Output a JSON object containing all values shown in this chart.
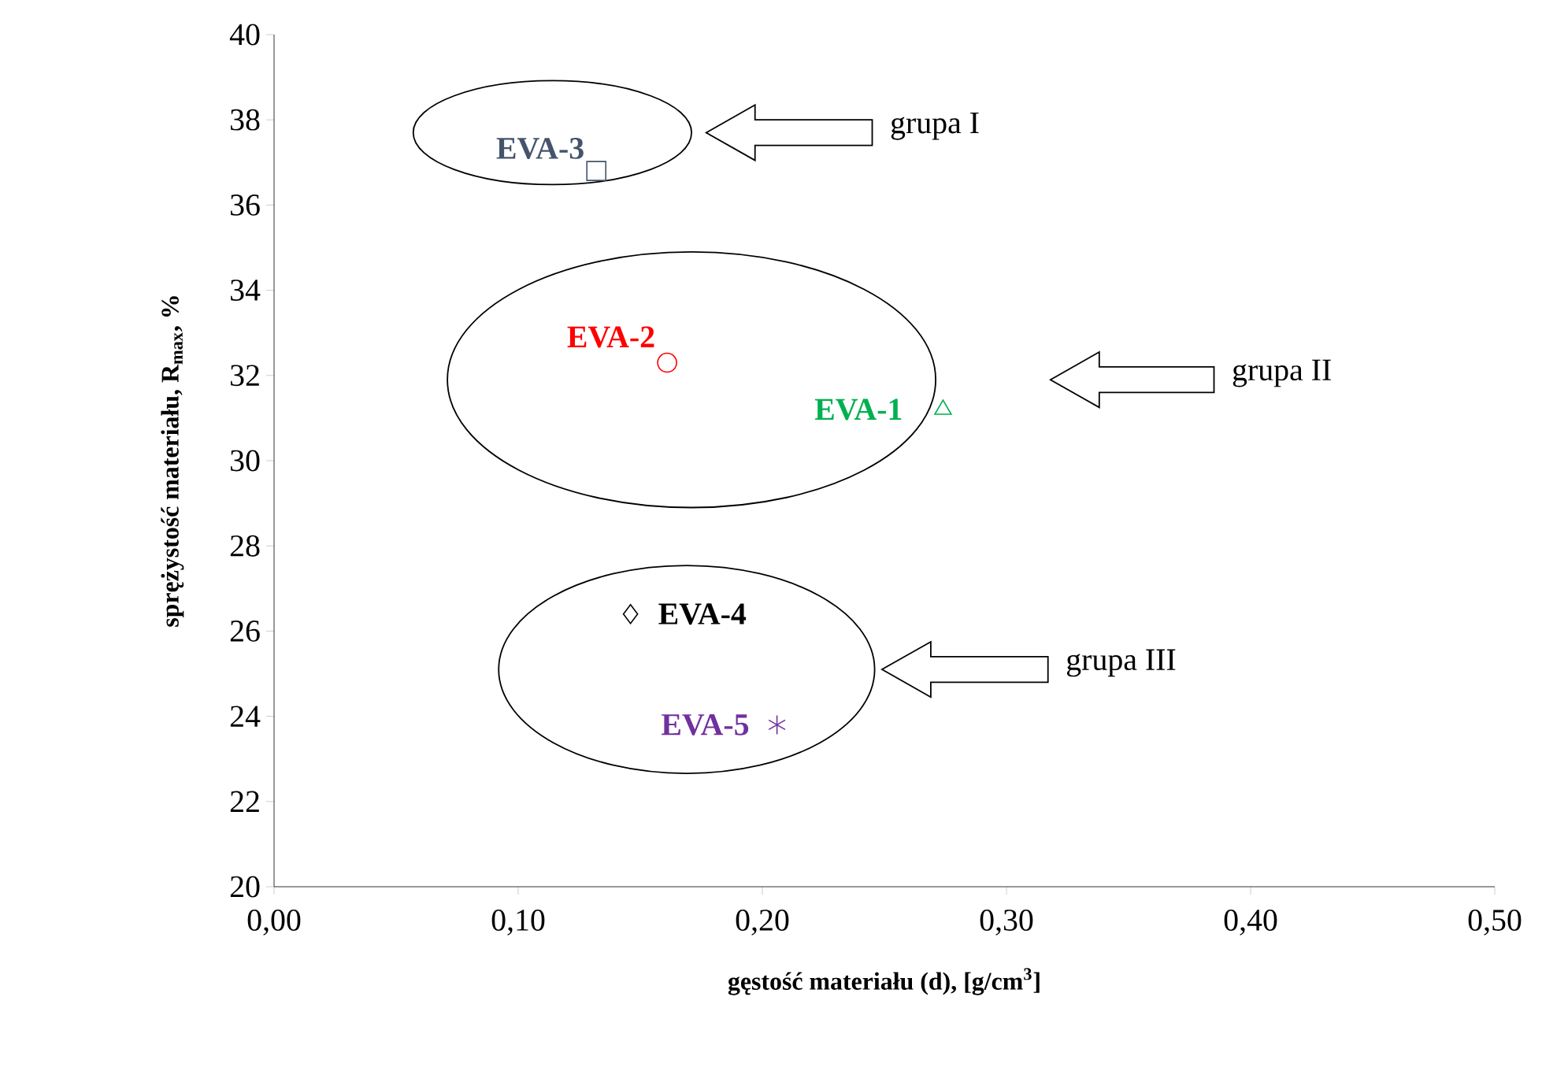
{
  "chart_data": {
    "type": "scatter",
    "xlabel": "gęstość materiału (d), [g/cm$^{3}$]",
    "ylabel": "sprężystość materiału, R$_{max}$, %",
    "series": [
      {
        "name": "EVA-3",
        "color": "#44546a",
        "marker": "square",
        "x": [
          0.132
        ],
        "values": [
          36.8
        ]
      },
      {
        "name": "EVA-2",
        "color": "#ff0000",
        "marker": "circle",
        "x": [
          0.161
        ],
        "values": [
          32.3
        ]
      },
      {
        "name": "EVA-1",
        "color": "#00b050",
        "marker": "triangle",
        "x": [
          0.274
        ],
        "values": [
          31.2
        ]
      },
      {
        "name": "EVA-4",
        "color": "#000000",
        "marker": "diamond",
        "x": [
          0.146
        ],
        "values": [
          26.4
        ]
      },
      {
        "name": "EVA-5",
        "color": "#7030a0",
        "marker": "cross",
        "x": [
          0.206
        ],
        "values": [
          23.8
        ]
      }
    ],
    "annotations": [
      "grupa I",
      "grupa II",
      "grupa III"
    ],
    "xlim": [
      0,
      0.5
    ],
    "xticks": [
      {
        "value": 0,
        "label": "0,00"
      },
      {
        "value": 0.1,
        "label": "0,10"
      },
      {
        "value": 0.2,
        "label": "0,20"
      },
      {
        "value": 0.3,
        "label": "0,30"
      },
      {
        "value": 0.4,
        "label": "0,40"
      },
      {
        "value": 0.5,
        "label": "0,50"
      }
    ],
    "ylim": [
      20,
      40
    ],
    "yticks": [
      20,
      22,
      24,
      26,
      28,
      30,
      32,
      34,
      36,
      38,
      40
    ],
    "grid": false
  }
}
